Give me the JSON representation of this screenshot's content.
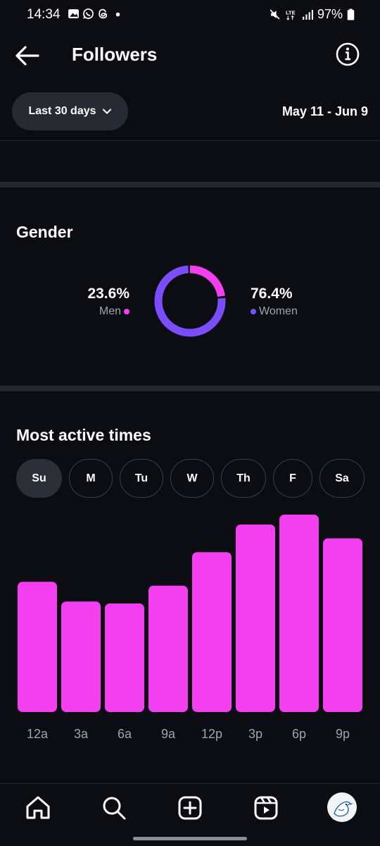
{
  "status_bar": {
    "time": "14:34",
    "battery": "97%",
    "network": "LTE",
    "left_icons": [
      "gallery-icon",
      "whatsapp-icon",
      "threads-icon",
      "notification-dot-icon"
    ],
    "right_icons": [
      "mute-icon",
      "lte-icon",
      "signal-icon",
      "battery-icon"
    ]
  },
  "header": {
    "title": "Followers",
    "back_icon": "back-arrow-icon",
    "info_icon": "info-icon"
  },
  "range": {
    "selector_label": "Last 30 days",
    "date_range": "May 11 - Jun 9"
  },
  "gender": {
    "title": "Gender",
    "men": {
      "percent": "23.6%",
      "label": "Men",
      "value": 23.6,
      "color": "#f43ff0"
    },
    "women": {
      "percent": "76.4%",
      "label": "Women",
      "value": 76.4,
      "color": "#7c4dff"
    }
  },
  "active_times": {
    "title": "Most active times",
    "days": [
      {
        "label": "Su",
        "selected": true
      },
      {
        "label": "M",
        "selected": false
      },
      {
        "label": "Tu",
        "selected": false
      },
      {
        "label": "W",
        "selected": false
      },
      {
        "label": "Th",
        "selected": false
      },
      {
        "label": "F",
        "selected": false
      },
      {
        "label": "Sa",
        "selected": false
      }
    ]
  },
  "chart_data": {
    "type": "bar",
    "categories": [
      "12a",
      "3a",
      "6a",
      "9a",
      "12p",
      "3p",
      "6p",
      "9p"
    ],
    "values": [
      66,
      56,
      55,
      64,
      81,
      95,
      100,
      88
    ],
    "ylim": [
      0,
      100
    ],
    "grid": false,
    "bar_color": "#f43ff0"
  },
  "bottom_nav": {
    "items": [
      "home-icon",
      "search-icon",
      "create-icon",
      "reels-icon",
      "profile-avatar"
    ]
  },
  "colors": {
    "background": "#0b0d12",
    "accent_pink": "#f43ff0",
    "accent_purple": "#7c4dff"
  }
}
